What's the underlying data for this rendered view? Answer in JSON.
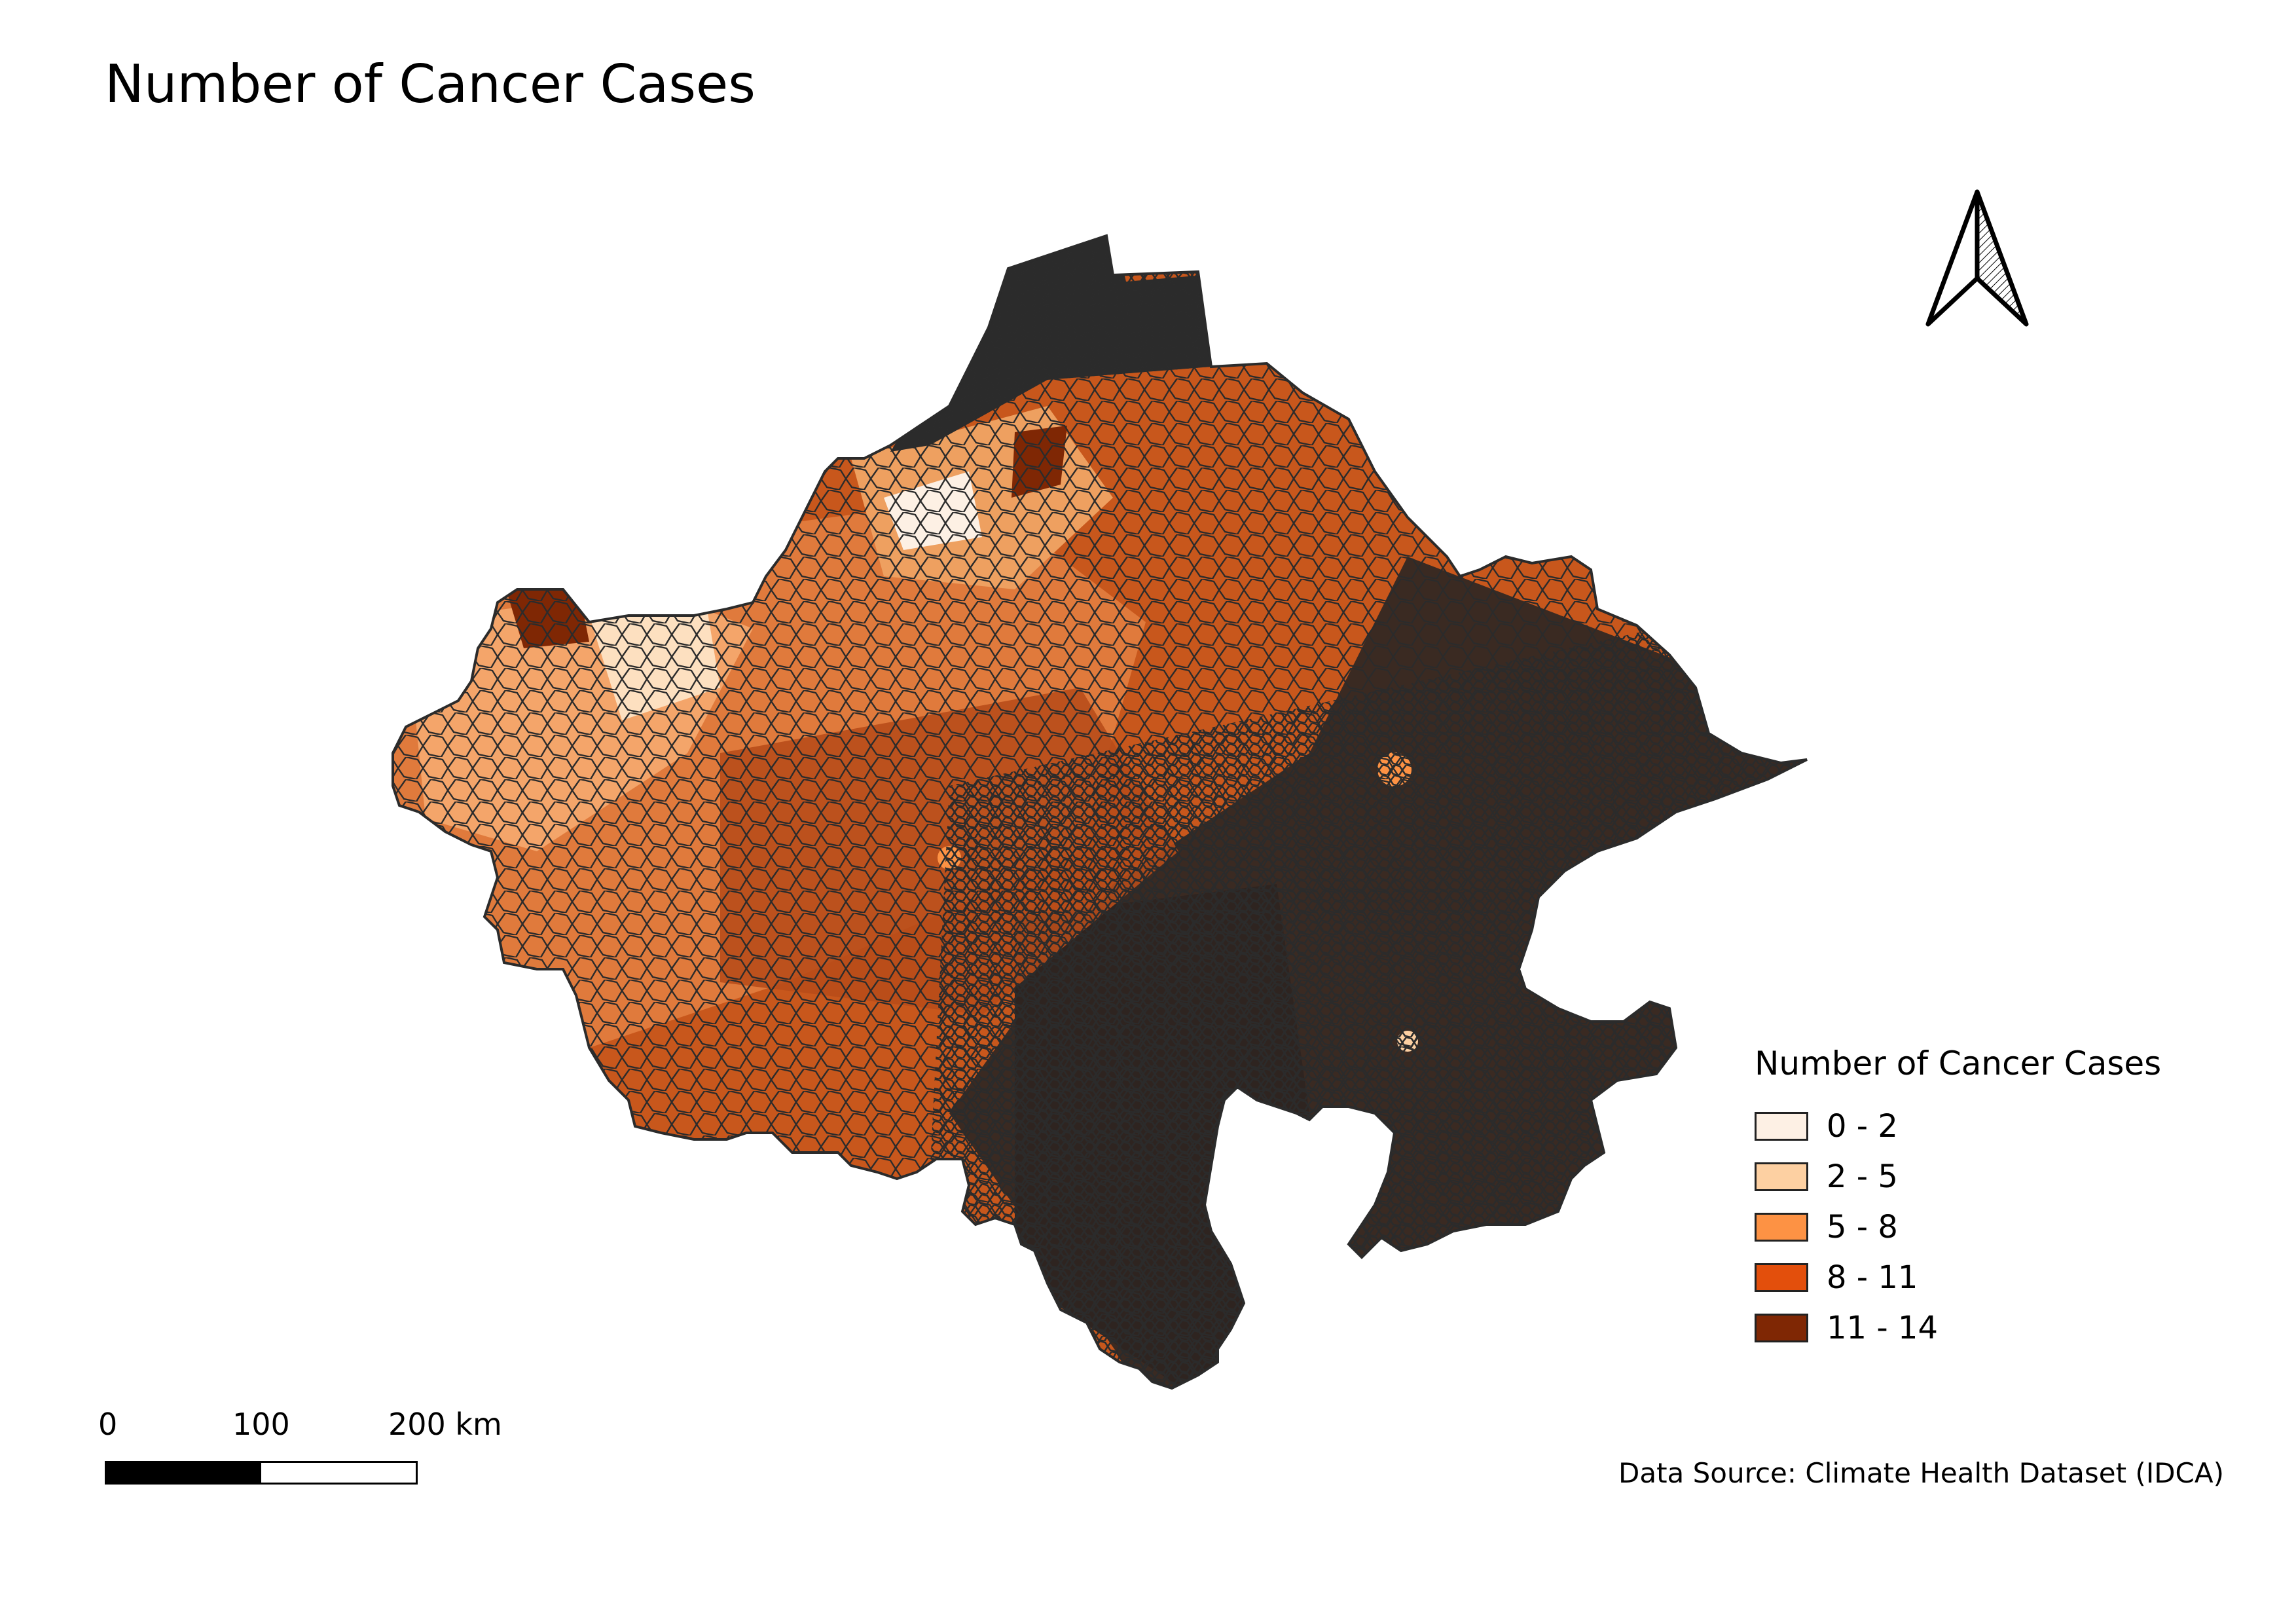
{
  "title": "Number of Cancer Cases",
  "legend": {
    "title": "Number of Cancer Cases",
    "classes": [
      {
        "label": "0 - 2",
        "color": "#fdf0e4"
      },
      {
        "label": "2 - 5",
        "color": "#fdd0a2"
      },
      {
        "label": "5 - 8",
        "color": "#fd9244"
      },
      {
        "label": "8 - 11",
        "color": "#e34f0c"
      },
      {
        "label": "11 - 14",
        "color": "#7f2704"
      }
    ]
  },
  "scale_bar": {
    "labels": [
      "0",
      "100",
      "200 km"
    ]
  },
  "data_source": "Data Source: Climate Health Dataset (IDCA)",
  "boundary_color": "#2b2b2b",
  "north_arrow_icon": "north-arrow-icon"
}
